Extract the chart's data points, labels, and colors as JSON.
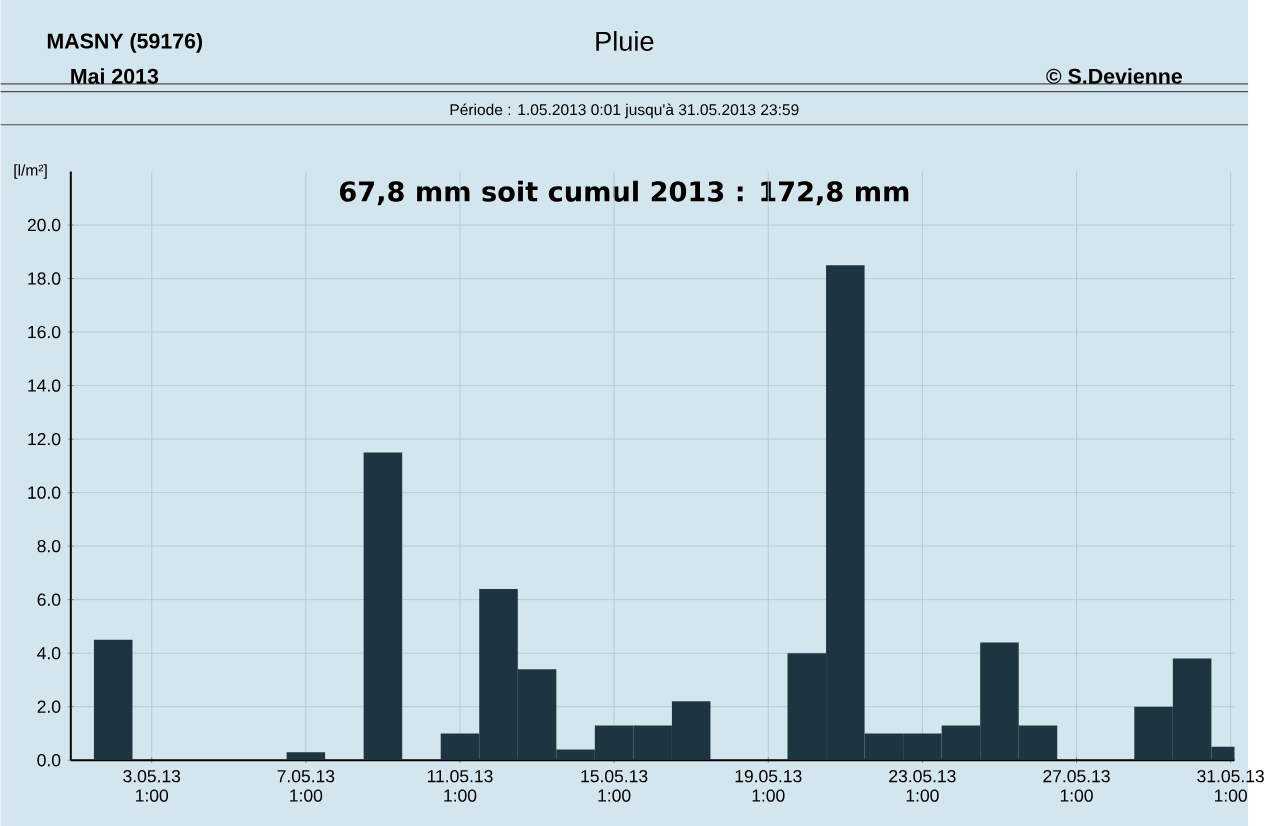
{
  "chart_data": {
    "type": "bar",
    "title": "Pluie",
    "subtitle": "Période :  1.05.2013   0:01   jusqu'à  31.05.2013   23:59",
    "ylabel": "[l/m²]",
    "annotations": [
      "MASNY (59176)",
      "Mai  2013",
      "© S.Devienne",
      "67,8 mm  soit cumul 2013 : 172,8 mm"
    ],
    "categories": [
      null,
      null,
      "3.05.13 1:00",
      null,
      null,
      null,
      "7.05.13 1:00",
      null,
      null,
      null,
      "11.05.13 1:00",
      null,
      null,
      null,
      "15.05.13 1:00",
      null,
      null,
      null,
      "19.05.13 1:00",
      null,
      null,
      null,
      "23.05.13 1:00",
      null,
      null,
      null,
      "27.05.13 1:00",
      null,
      null,
      null,
      "31.05.13 1:00"
    ],
    "values": [
      0,
      4.5,
      0,
      0,
      0,
      0,
      0.3,
      0,
      11.5,
      0,
      1.0,
      6.4,
      3.4,
      0.4,
      1.3,
      1.3,
      2.2,
      0,
      0,
      4.0,
      18.5,
      1.0,
      1.0,
      1.3,
      4.4,
      1.3,
      0,
      0,
      2.0,
      3.8,
      0.5
    ],
    "color": "#1e3441",
    "ylim": [
      0,
      22
    ],
    "yticks": [
      {
        "value": 0,
        "label": "0.0"
      },
      {
        "value": 2,
        "label": "2.0"
      },
      {
        "value": 4,
        "label": "4.0"
      },
      {
        "value": 6,
        "label": "6.0"
      },
      {
        "value": 8,
        "label": "8.0"
      },
      {
        "value": 10,
        "label": "10.0"
      },
      {
        "value": 12,
        "label": "12.0"
      },
      {
        "value": 14,
        "label": "14.0"
      },
      {
        "value": 16,
        "label": "16.0"
      },
      {
        "value": 18,
        "label": "18.0"
      },
      {
        "value": 20,
        "label": "20.0"
      }
    ],
    "grid": true
  }
}
